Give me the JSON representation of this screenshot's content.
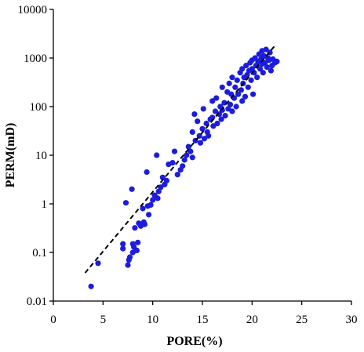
{
  "chart_data": {
    "type": "scatter",
    "title": "",
    "xlabel": "PORE(%)",
    "ylabel": "PERM(mD)",
    "xlim": [
      0,
      30
    ],
    "ylim": [
      0.01,
      10000
    ],
    "y_scale": "log",
    "grid": false,
    "legend": "none",
    "colors": {
      "points": "#1c1cdf",
      "trendline": "#000000"
    },
    "x_ticks": [
      "0",
      "5",
      "10",
      "15",
      "20",
      "25",
      "30"
    ],
    "y_ticks": [
      "0.01",
      "0.1",
      "1",
      "10",
      "100",
      "1000",
      "10000"
    ],
    "trendline": {
      "style": "dashed",
      "x": [
        3.2,
        22.3
      ],
      "y": [
        0.038,
        1800
      ]
    },
    "series": [
      {
        "points": [
          [
            3.8,
            0.02
          ],
          [
            4.5,
            0.06
          ],
          [
            7.0,
            0.15
          ],
          [
            7.0,
            0.12
          ],
          [
            7.3,
            1.05
          ],
          [
            7.5,
            0.055
          ],
          [
            7.6,
            0.07
          ],
          [
            7.7,
            0.08
          ],
          [
            7.9,
            2.0
          ],
          [
            8.0,
            0.1
          ],
          [
            8.0,
            0.15
          ],
          [
            8.1,
            0.13
          ],
          [
            8.2,
            0.32
          ],
          [
            8.4,
            0.11
          ],
          [
            8.5,
            0.16
          ],
          [
            8.6,
            0.4
          ],
          [
            8.8,
            0.35
          ],
          [
            9.0,
            0.8
          ],
          [
            9.1,
            0.42
          ],
          [
            9.2,
            0.38
          ],
          [
            9.4,
            4.5
          ],
          [
            9.5,
            0.9
          ],
          [
            9.6,
            0.6
          ],
          [
            9.8,
            0.95
          ],
          [
            10.0,
            1.2
          ],
          [
            10.2,
            1.5
          ],
          [
            10.4,
            10.0
          ],
          [
            10.5,
            1.3
          ],
          [
            10.6,
            1.8
          ],
          [
            10.8,
            2.2
          ],
          [
            11.0,
            3.5
          ],
          [
            11.2,
            2.5
          ],
          [
            11.4,
            3.0
          ],
          [
            11.6,
            6.5
          ],
          [
            12.0,
            7.0
          ],
          [
            12.2,
            12.0
          ],
          [
            12.5,
            4.0
          ],
          [
            12.8,
            5.0
          ],
          [
            13.0,
            6.0
          ],
          [
            13.2,
            8.0
          ],
          [
            13.4,
            10.0
          ],
          [
            13.6,
            15.0
          ],
          [
            13.8,
            12.0
          ],
          [
            14.0,
            30.0
          ],
          [
            14.0,
            9.0
          ],
          [
            14.2,
            70.0
          ],
          [
            14.3,
            20.0
          ],
          [
            14.5,
            50.0
          ],
          [
            14.7,
            25.0
          ],
          [
            14.8,
            18.0
          ],
          [
            15.0,
            35.0
          ],
          [
            15.1,
            90.0
          ],
          [
            15.2,
            22.0
          ],
          [
            15.4,
            45.0
          ],
          [
            15.5,
            30.0
          ],
          [
            15.6,
            25.0
          ],
          [
            15.8,
            55.0
          ],
          [
            16.0,
            130.0
          ],
          [
            16.0,
            60.0
          ],
          [
            16.1,
            40.0
          ],
          [
            16.3,
            80.0
          ],
          [
            16.4,
            150.0
          ],
          [
            16.5,
            45.0
          ],
          [
            16.7,
            70.0
          ],
          [
            16.8,
            100.0
          ],
          [
            16.9,
            55.0
          ],
          [
            17.0,
            250.0
          ],
          [
            17.0,
            85.0
          ],
          [
            17.2,
            120.0
          ],
          [
            17.3,
            65.0
          ],
          [
            17.5,
            200.0
          ],
          [
            17.6,
            90.0
          ],
          [
            17.7,
            300.0
          ],
          [
            17.8,
            110.0
          ],
          [
            17.9,
            180.0
          ],
          [
            18.0,
            80.0
          ],
          [
            18.0,
            400.0
          ],
          [
            18.2,
            150.0
          ],
          [
            18.3,
            250.0
          ],
          [
            18.4,
            100.0
          ],
          [
            18.5,
            350.0
          ],
          [
            18.6,
            180.0
          ],
          [
            18.8,
            500.0
          ],
          [
            18.9,
            220.0
          ],
          [
            19.0,
            130.0
          ],
          [
            19.0,
            600.0
          ],
          [
            19.1,
            300.0
          ],
          [
            19.2,
            400.0
          ],
          [
            19.3,
            160.0
          ],
          [
            19.4,
            700.0
          ],
          [
            19.5,
            450.0
          ],
          [
            19.6,
            250.0
          ],
          [
            19.7,
            550.0
          ],
          [
            19.8,
            800.0
          ],
          [
            19.9,
            350.0
          ],
          [
            20.0,
            900.0
          ],
          [
            20.0,
            600.0
          ],
          [
            20.1,
            180.0
          ],
          [
            20.2,
            500.0
          ],
          [
            20.3,
            1000.0
          ],
          [
            20.4,
            700.0
          ],
          [
            20.5,
            400.0
          ],
          [
            20.6,
            850.0
          ],
          [
            20.7,
            1200.0
          ],
          [
            20.8,
            600.0
          ],
          [
            20.9,
            950.0
          ],
          [
            21.0,
            1400.0
          ],
          [
            21.0,
            750.0
          ],
          [
            21.1,
            500.0
          ],
          [
            21.2,
            1100.0
          ],
          [
            21.3,
            800.0
          ],
          [
            21.4,
            1500.0
          ],
          [
            21.5,
            650.0
          ],
          [
            21.6,
            1000.0
          ],
          [
            21.7,
            900.0
          ],
          [
            21.8,
            1300.0
          ],
          [
            21.9,
            550.0
          ],
          [
            22.0,
            700.0
          ],
          [
            22.1,
            950.0
          ],
          [
            22.3,
            800.0
          ],
          [
            22.5,
            850.0
          ]
        ]
      }
    ]
  }
}
